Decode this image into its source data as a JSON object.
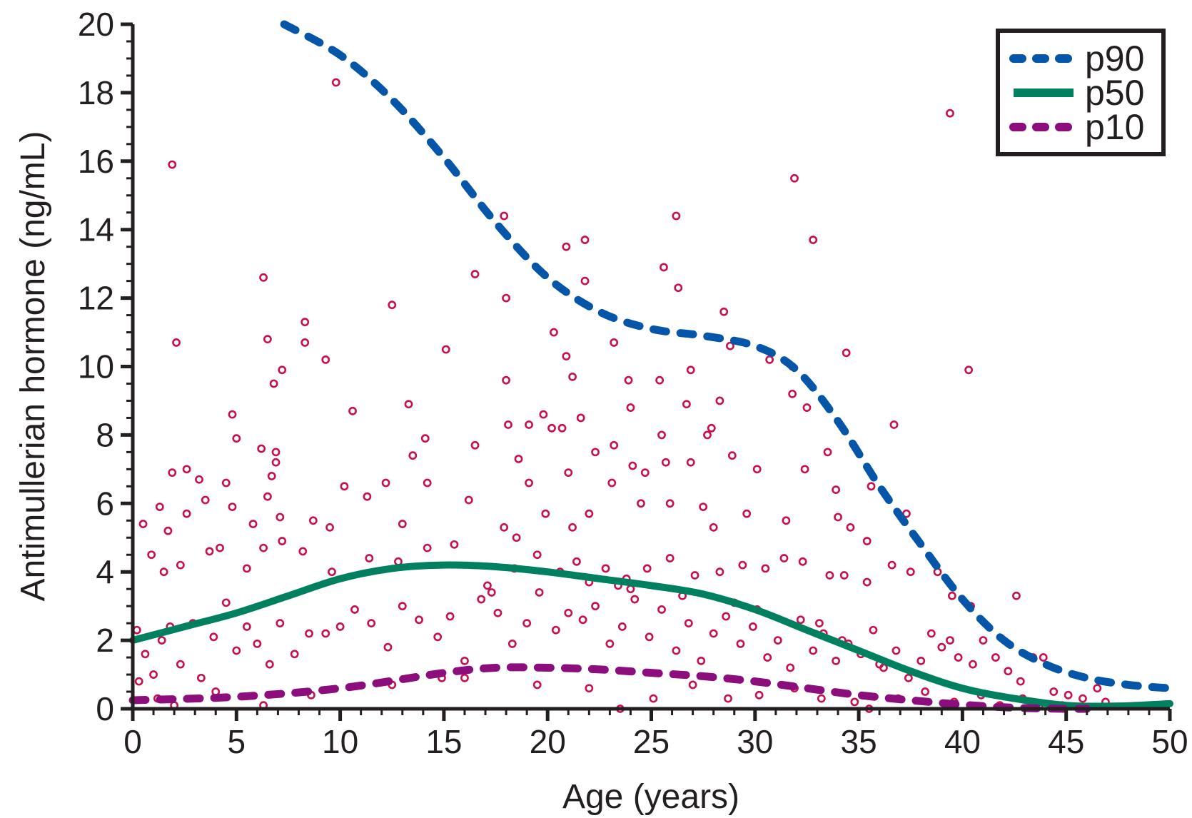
{
  "chart_data": {
    "type": "scatter",
    "title": "",
    "xlabel": "Age (years)",
    "ylabel": "Antimullerian hormone (ng/mL)",
    "xlim": [
      0,
      50
    ],
    "ylim": [
      0,
      20
    ],
    "xticks": [
      "0",
      "5",
      "10",
      "15",
      "20",
      "25",
      "30",
      "35",
      "40",
      "45",
      "50"
    ],
    "yticks": [
      "0",
      "2",
      "4",
      "6",
      "8",
      "10",
      "12",
      "14",
      "16",
      "18",
      "20"
    ],
    "grid": false,
    "legend_position": "top-right",
    "colors": {
      "points": "#c8104e",
      "p90": "#0556a8",
      "p50": "#00805f",
      "p10": "#8c0d7c",
      "axis": "#231f20"
    },
    "series": [
      {
        "name": "p90",
        "style": "dashed",
        "x": [
          7.3,
          10,
          12.5,
          15,
          17.5,
          20,
          22.5,
          25,
          27.5,
          30,
          32,
          34,
          36,
          38,
          40,
          42,
          44,
          46,
          48,
          50
        ],
        "y": [
          20,
          19.1,
          17.8,
          16.1,
          14.2,
          12.6,
          11.6,
          11.1,
          10.9,
          10.6,
          9.9,
          8.4,
          6.5,
          4.8,
          3.2,
          2.0,
          1.3,
          0.9,
          0.7,
          0.6
        ]
      },
      {
        "name": "p50",
        "style": "solid",
        "x": [
          0,
          2.5,
          5,
          7.5,
          10,
          12.5,
          15,
          17.5,
          20,
          22.5,
          25,
          27.5,
          30,
          32.5,
          35,
          37.5,
          40,
          42.5,
          45,
          47.5,
          50
        ],
        "y": [
          2.0,
          2.4,
          2.8,
          3.3,
          3.8,
          4.1,
          4.2,
          4.15,
          4.0,
          3.8,
          3.6,
          3.35,
          2.9,
          2.3,
          1.7,
          1.1,
          0.6,
          0.3,
          0.1,
          0.08,
          0.15
        ]
      },
      {
        "name": "p10",
        "style": "dashed",
        "x": [
          0,
          5,
          10,
          15,
          17.5,
          20,
          22.5,
          25,
          27.5,
          30,
          32.5,
          35,
          37.5,
          40,
          42.5,
          45,
          46
        ],
        "y": [
          0.25,
          0.35,
          0.6,
          1.05,
          1.2,
          1.2,
          1.15,
          1.05,
          0.95,
          0.8,
          0.6,
          0.4,
          0.25,
          0.12,
          0.03,
          0,
          0
        ]
      }
    ],
    "points": [
      [
        1.9,
        15.9
      ],
      [
        2.1,
        10.7
      ],
      [
        9.8,
        18.3
      ],
      [
        39.4,
        17.4
      ],
      [
        31.9,
        15.5
      ],
      [
        32.8,
        13.7
      ],
      [
        26.2,
        14.4
      ],
      [
        17.9,
        14.4
      ],
      [
        20.9,
        13.5
      ],
      [
        21.8,
        13.7
      ],
      [
        16.5,
        12.7
      ],
      [
        25.6,
        12.9
      ],
      [
        26.3,
        12.3
      ],
      [
        6.3,
        12.6
      ],
      [
        18.0,
        12.0
      ],
      [
        21.8,
        12.5
      ],
      [
        12.5,
        11.8
      ],
      [
        28.5,
        11.6
      ],
      [
        8.3,
        11.3
      ],
      [
        20.3,
        11.0
      ],
      [
        15.1,
        10.5
      ],
      [
        23.2,
        10.7
      ],
      [
        34.4,
        10.4
      ],
      [
        6.5,
        10.8
      ],
      [
        8.3,
        10.7
      ],
      [
        9.3,
        10.2
      ],
      [
        20.9,
        10.3
      ],
      [
        28.8,
        10.6
      ],
      [
        40.3,
        9.9
      ],
      [
        7.2,
        9.9
      ],
      [
        6.8,
        9.5
      ],
      [
        21.2,
        9.7
      ],
      [
        18.0,
        9.6
      ],
      [
        23.9,
        9.6
      ],
      [
        25.4,
        9.6
      ],
      [
        26.9,
        9.9
      ],
      [
        30.7,
        10.2
      ],
      [
        31.8,
        10.0
      ],
      [
        10.6,
        8.7
      ],
      [
        13.3,
        8.9
      ],
      [
        4.8,
        8.6
      ],
      [
        24.0,
        8.8
      ],
      [
        26.7,
        8.9
      ],
      [
        28.3,
        9.0
      ],
      [
        31.8,
        9.2
      ],
      [
        32.5,
        8.8
      ],
      [
        19.8,
        8.6
      ],
      [
        18.1,
        8.3
      ],
      [
        19.1,
        8.3
      ],
      [
        20.2,
        8.2
      ],
      [
        36.7,
        8.3
      ],
      [
        5.0,
        7.9
      ],
      [
        14.1,
        7.9
      ],
      [
        16.5,
        7.7
      ],
      [
        20.7,
        8.2
      ],
      [
        21.6,
        8.5
      ],
      [
        23.2,
        7.7
      ],
      [
        25.5,
        8.0
      ],
      [
        27.7,
        8.0
      ],
      [
        27.9,
        8.2
      ],
      [
        1.9,
        6.9
      ],
      [
        2.6,
        7.0
      ],
      [
        3.2,
        6.7
      ],
      [
        4.5,
        6.6
      ],
      [
        6.2,
        7.6
      ],
      [
        6.7,
        6.8
      ],
      [
        6.9,
        7.5
      ],
      [
        6.9,
        7.2
      ],
      [
        13.5,
        7.4
      ],
      [
        14.2,
        6.6
      ],
      [
        18.6,
        7.3
      ],
      [
        19.1,
        6.6
      ],
      [
        21.0,
        6.9
      ],
      [
        22.3,
        7.5
      ],
      [
        24.1,
        7.1
      ],
      [
        24.7,
        6.9
      ],
      [
        25.7,
        7.2
      ],
      [
        26.9,
        7.2
      ],
      [
        28.9,
        7.4
      ],
      [
        30.1,
        7.0
      ],
      [
        32.4,
        7.0
      ],
      [
        33.5,
        7.5
      ],
      [
        33.9,
        6.4
      ],
      [
        35.6,
        6.5
      ],
      [
        0.5,
        5.4
      ],
      [
        1.3,
        5.9
      ],
      [
        1.7,
        5.2
      ],
      [
        2.6,
        5.7
      ],
      [
        3.5,
        6.1
      ],
      [
        4.8,
        5.9
      ],
      [
        5.8,
        5.4
      ],
      [
        6.5,
        6.2
      ],
      [
        7.1,
        5.6
      ],
      [
        8.7,
        5.5
      ],
      [
        9.5,
        5.3
      ],
      [
        10.2,
        6.5
      ],
      [
        11.3,
        6.2
      ],
      [
        12.2,
        6.6
      ],
      [
        13.0,
        5.4
      ],
      [
        16.2,
        6.1
      ],
      [
        17.9,
        5.3
      ],
      [
        18.5,
        5.0
      ],
      [
        19.9,
        5.7
      ],
      [
        21.2,
        5.3
      ],
      [
        22.0,
        5.7
      ],
      [
        23.1,
        6.6
      ],
      [
        24.5,
        6.0
      ],
      [
        25.9,
        6.0
      ],
      [
        27.5,
        5.9
      ],
      [
        28.0,
        5.3
      ],
      [
        29.6,
        5.7
      ],
      [
        31.5,
        5.5
      ],
      [
        34.0,
        5.6
      ],
      [
        34.6,
        5.3
      ],
      [
        35.4,
        4.9
      ],
      [
        37.3,
        5.7
      ],
      [
        0.9,
        4.5
      ],
      [
        1.5,
        4.0
      ],
      [
        2.3,
        4.2
      ],
      [
        3.7,
        4.6
      ],
      [
        4.2,
        4.7
      ],
      [
        5.5,
        4.1
      ],
      [
        6.3,
        4.7
      ],
      [
        7.2,
        4.9
      ],
      [
        8.2,
        4.6
      ],
      [
        9.6,
        4.0
      ],
      [
        11.4,
        4.4
      ],
      [
        12.8,
        4.3
      ],
      [
        14.2,
        4.7
      ],
      [
        15.5,
        4.8
      ],
      [
        17.1,
        3.6
      ],
      [
        18.4,
        4.1
      ],
      [
        19.5,
        4.5
      ],
      [
        20.6,
        4.0
      ],
      [
        21.4,
        4.3
      ],
      [
        22.8,
        4.1
      ],
      [
        23.8,
        3.8
      ],
      [
        24.8,
        4.1
      ],
      [
        25.9,
        4.4
      ],
      [
        27.1,
        3.9
      ],
      [
        28.3,
        4.0
      ],
      [
        29.4,
        4.2
      ],
      [
        30.5,
        4.1
      ],
      [
        31.4,
        4.4
      ],
      [
        32.3,
        4.3
      ],
      [
        33.6,
        3.9
      ],
      [
        34.3,
        3.9
      ],
      [
        35.4,
        3.7
      ],
      [
        36.6,
        4.2
      ],
      [
        37.5,
        4.0
      ],
      [
        38.8,
        4.0
      ],
      [
        39.5,
        3.3
      ],
      [
        40.4,
        3.0
      ],
      [
        42.6,
        3.3
      ],
      [
        0.2,
        2.3
      ],
      [
        0.6,
        1.6
      ],
      [
        1.0,
        1.0
      ],
      [
        1.4,
        2.0
      ],
      [
        1.8,
        2.4
      ],
      [
        2.3,
        1.3
      ],
      [
        2.9,
        2.5
      ],
      [
        3.3,
        0.9
      ],
      [
        3.9,
        2.1
      ],
      [
        4.5,
        3.1
      ],
      [
        5.0,
        1.7
      ],
      [
        5.5,
        2.4
      ],
      [
        6.0,
        1.9
      ],
      [
        6.6,
        1.3
      ],
      [
        7.1,
        2.5
      ],
      [
        7.8,
        1.6
      ],
      [
        8.5,
        2.2
      ],
      [
        9.3,
        2.2
      ],
      [
        10.0,
        2.4
      ],
      [
        10.7,
        2.9
      ],
      [
        11.5,
        2.5
      ],
      [
        12.3,
        1.8
      ],
      [
        13.0,
        3.0
      ],
      [
        13.8,
        2.6
      ],
      [
        14.7,
        2.1
      ],
      [
        15.3,
        2.7
      ],
      [
        16.0,
        1.4
      ],
      [
        16.8,
        3.2
      ],
      [
        17.6,
        2.8
      ],
      [
        18.3,
        1.9
      ],
      [
        19.0,
        2.5
      ],
      [
        19.6,
        3.4
      ],
      [
        20.4,
        2.3
      ],
      [
        21.0,
        2.8
      ],
      [
        21.7,
        2.6
      ],
      [
        22.3,
        3.0
      ],
      [
        23.0,
        1.9
      ],
      [
        23.6,
        2.4
      ],
      [
        24.2,
        3.2
      ],
      [
        24.9,
        2.1
      ],
      [
        25.5,
        2.9
      ],
      [
        26.2,
        1.7
      ],
      [
        26.8,
        2.5
      ],
      [
        27.4,
        1.4
      ],
      [
        28.0,
        2.2
      ],
      [
        28.6,
        2.7
      ],
      [
        29.3,
        1.9
      ],
      [
        29.9,
        2.4
      ],
      [
        30.6,
        1.5
      ],
      [
        31.1,
        2.0
      ],
      [
        31.7,
        1.2
      ],
      [
        32.2,
        2.6
      ],
      [
        32.8,
        1.7
      ],
      [
        33.3,
        2.2
      ],
      [
        33.9,
        1.4
      ],
      [
        34.5,
        1.9
      ],
      [
        35.1,
        1.6
      ],
      [
        35.7,
        2.3
      ],
      [
        36.2,
        1.2
      ],
      [
        36.8,
        1.7
      ],
      [
        37.4,
        0.9
      ],
      [
        38.0,
        1.4
      ],
      [
        38.5,
        2.2
      ],
      [
        39.0,
        1.8
      ],
      [
        39.4,
        2.0
      ],
      [
        39.8,
        1.5
      ],
      [
        40.5,
        1.3
      ],
      [
        41.0,
        2.0
      ],
      [
        41.6,
        1.5
      ],
      [
        42.2,
        1.1
      ],
      [
        42.8,
        0.8
      ],
      [
        43.4,
        1.5
      ],
      [
        43.9,
        1.5
      ],
      [
        44.4,
        0.5
      ],
      [
        45.1,
        0.4
      ],
      [
        45.8,
        0.3
      ],
      [
        46.5,
        0.6
      ],
      [
        46.9,
        0.2
      ],
      [
        0.3,
        0.8
      ],
      [
        1.2,
        0.3
      ],
      [
        2.0,
        0.1
      ],
      [
        4.0,
        0.5
      ],
      [
        6.3,
        0.1
      ],
      [
        8.6,
        0.4
      ],
      [
        12.5,
        0.7
      ],
      [
        14.9,
        0.9
      ],
      [
        16.0,
        0.9
      ],
      [
        19.5,
        0.7
      ],
      [
        22.0,
        0.6
      ],
      [
        23.5,
        0.0
      ],
      [
        25.1,
        0.3
      ],
      [
        27.0,
        0.7
      ],
      [
        28.7,
        0.3
      ],
      [
        30.2,
        0.4
      ],
      [
        31.9,
        0.6
      ],
      [
        33.2,
        0.3
      ],
      [
        34.8,
        0.2
      ],
      [
        35.5,
        0.0
      ],
      [
        36.9,
        0.3
      ],
      [
        38.2,
        0.5
      ],
      [
        39.6,
        0.2
      ],
      [
        40.9,
        0.4
      ],
      [
        41.8,
        0.1
      ],
      [
        42.9,
        0.3
      ],
      [
        43.7,
        0.1
      ],
      [
        44.8,
        0.1
      ],
      [
        17.3,
        3.4
      ],
      [
        22.0,
        3.7
      ],
      [
        23.4,
        3.6
      ],
      [
        24.0,
        3.5
      ],
      [
        26.5,
        3.3
      ],
      [
        29.0,
        3.1
      ],
      [
        30.1,
        2.9
      ],
      [
        33.1,
        2.5
      ],
      [
        34.2,
        2.0
      ],
      [
        36.0,
        1.3
      ]
    ]
  }
}
